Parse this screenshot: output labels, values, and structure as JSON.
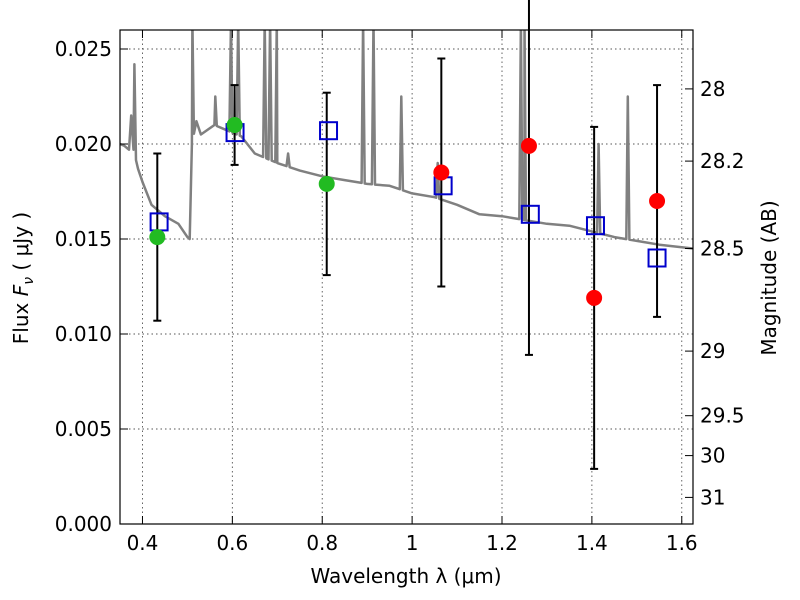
{
  "chart_data": {
    "type": "scatter",
    "title": "",
    "xlabel": "Wavelength  λ (μm)",
    "ylabel": "Flux  F_ν  ( μJy )",
    "ylabel_parts": {
      "prefix": "Flux  ",
      "F": "F",
      "sub": "ν",
      "suffix": "  ( μJy )"
    },
    "y2label": "Magnitude (AB)",
    "xlim": [
      0.35,
      1.625
    ],
    "ylim": [
      0.0,
      0.026
    ],
    "grid": true,
    "x_ticks": [
      0.4,
      0.6,
      0.8,
      1.0,
      1.2,
      1.4,
      1.6
    ],
    "x_tick_labels": [
      "0.4",
      "0.6",
      "0.8",
      "1",
      "1.2",
      "1.4",
      "1.6"
    ],
    "y_ticks": [
      0.0,
      0.005,
      0.01,
      0.015,
      0.02,
      0.025
    ],
    "y_tick_labels": [
      "0.000",
      "0.005",
      "0.010",
      "0.015",
      "0.020",
      "0.025"
    ],
    "y2_ticks": [
      {
        "label": "28",
        "flux": 0.0229
      },
      {
        "label": "28.2",
        "flux": 0.0191
      },
      {
        "label": "28.5",
        "flux": 0.0145
      },
      {
        "label": "29",
        "flux": 0.0091
      },
      {
        "label": "29.5",
        "flux": 0.0057
      },
      {
        "label": "30",
        "flux": 0.0036
      },
      {
        "label": "31",
        "flux": 0.0014
      }
    ],
    "colors": {
      "model": "#808080",
      "model_points": "#0000cc",
      "green": "#22bb22",
      "red": "#ff0000",
      "errorbar": "#000000"
    },
    "model_spectrum": {
      "x": [
        0.35,
        0.36,
        0.37,
        0.375,
        0.38,
        0.39,
        0.4,
        0.42,
        0.45,
        0.48,
        0.5,
        0.505,
        0.51,
        0.52,
        0.53,
        0.56,
        0.58,
        0.6,
        0.62,
        0.65,
        0.7,
        0.75,
        0.8,
        0.85,
        0.9,
        0.95,
        1.0,
        1.05,
        1.1,
        1.15,
        1.2,
        1.25,
        1.3,
        1.35,
        1.4,
        1.45,
        1.5,
        1.55,
        1.625
      ],
      "y": [
        0.02,
        0.0199,
        0.0197,
        0.0215,
        0.0197,
        0.0187,
        0.018,
        0.0168,
        0.0162,
        0.0158,
        0.0151,
        0.015,
        0.02,
        0.0212,
        0.0205,
        0.021,
        0.0208,
        0.0206,
        0.0204,
        0.0195,
        0.019,
        0.0186,
        0.0183,
        0.0181,
        0.0179,
        0.0178,
        0.0174,
        0.0172,
        0.0168,
        0.0163,
        0.0162,
        0.016,
        0.0158,
        0.0157,
        0.0154,
        0.0151,
        0.0149,
        0.0147,
        0.0145
      ],
      "emission_lines": [
        {
          "x": 0.382,
          "peak": 0.0242
        },
        {
          "x": 0.511,
          "peak": 0.0265
        },
        {
          "x": 0.562,
          "peak": 0.0225
        },
        {
          "x": 0.597,
          "peak": 0.0265
        },
        {
          "x": 0.613,
          "peak": 0.0265
        },
        {
          "x": 0.672,
          "peak": 0.0265
        },
        {
          "x": 0.684,
          "peak": 0.0265
        },
        {
          "x": 0.699,
          "peak": 0.0265
        },
        {
          "x": 0.724,
          "peak": 0.0195
        },
        {
          "x": 0.891,
          "peak": 0.0265
        },
        {
          "x": 0.914,
          "peak": 0.0265
        },
        {
          "x": 0.976,
          "peak": 0.0225
        },
        {
          "x": 1.057,
          "peak": 0.019
        },
        {
          "x": 1.242,
          "peak": 0.0265
        },
        {
          "x": 1.25,
          "peak": 0.0265
        },
        {
          "x": 1.415,
          "peak": 0.02
        },
        {
          "x": 1.48,
          "peak": 0.0225
        }
      ]
    },
    "model_points": [
      {
        "x": 0.437,
        "y": 0.0159
      },
      {
        "x": 0.606,
        "y": 0.0206
      },
      {
        "x": 0.814,
        "y": 0.0207
      },
      {
        "x": 1.069,
        "y": 0.0178
      },
      {
        "x": 1.263,
        "y": 0.0163
      },
      {
        "x": 1.408,
        "y": 0.0157
      },
      {
        "x": 1.545,
        "y": 0.014
      }
    ],
    "observed": [
      {
        "x": 0.433,
        "y": 0.0151,
        "err": 0.0044,
        "color": "green"
      },
      {
        "x": 0.605,
        "y": 0.021,
        "err": 0.0021,
        "color": "green"
      },
      {
        "x": 0.81,
        "y": 0.0179,
        "err": 0.0048,
        "color": "green"
      },
      {
        "x": 1.065,
        "y": 0.0185,
        "err": 0.006,
        "color": "red"
      },
      {
        "x": 1.26,
        "y": 0.0199,
        "err": 0.011,
        "color": "red"
      },
      {
        "x": 1.405,
        "y": 0.0119,
        "err": 0.009,
        "color": "red"
      },
      {
        "x": 1.545,
        "y": 0.017,
        "err": 0.0061,
        "color": "red"
      }
    ]
  }
}
